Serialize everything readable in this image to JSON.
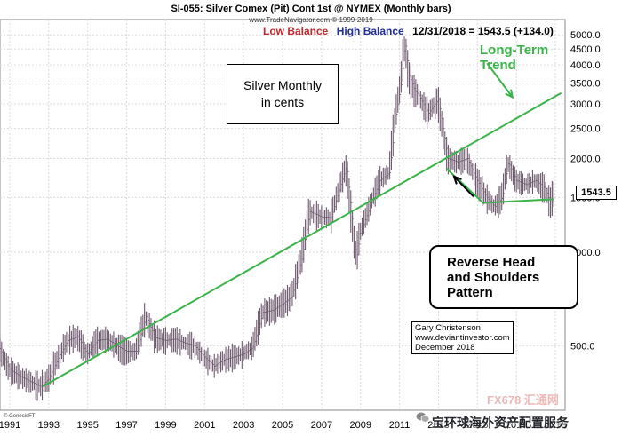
{
  "header": {
    "title": "SI-055:  Silver Comex (Pit) Cont 1st @ NYMEX  (Monthly bars)",
    "subtitle": "www.TradeNavigator.com © 1999-2019",
    "low_label": "Low Balance",
    "high_label": "High Balance",
    "last_quote": "12/31/2018 = 1543.5 (+134.0)"
  },
  "colors": {
    "low": "#c0282d",
    "high": "#1f2d99",
    "bar": "#6e5a6e",
    "trend": "#3bb34a",
    "grid": "#d9d9d9"
  },
  "annotations": {
    "box_line1": "Silver Monthly",
    "box_line2": "in cents",
    "trend_line1": "Long-Term",
    "trend_line2": "Trend",
    "pattern_line1": "Reverse Head",
    "pattern_line2": "and Shoulders",
    "pattern_line3": "Pattern",
    "credit_line1": "Gary Christenson",
    "credit_line2": "www.deviantinvestor.com",
    "credit_line3": "December 2018",
    "source": "© GenesisFT",
    "current_price": "1543.5"
  },
  "watermark": {
    "text": "宝环球海外资产配置服务",
    "domain": "FX678 汇通网",
    "icon": "wechat-icon"
  },
  "chart_data": {
    "type": "line",
    "scale": "log",
    "title": "SI-055:  Silver Comex (Pit) Cont 1st @ NYMEX  (Monthly bars)",
    "xlabel": "",
    "ylabel": "",
    "x_ticks": [
      "1991",
      "1993",
      "1995",
      "1997",
      "1999",
      "2001",
      "2003",
      "2005",
      "2007",
      "2009",
      "2011",
      "2013",
      "2015",
      "2017",
      "2019"
    ],
    "y_ticks": [
      "500.0",
      "1000.0",
      "1500.0",
      "2000.0",
      "2500.0",
      "3000.0",
      "3500.0",
      "4000.0",
      "4500.0",
      "5000.0"
    ],
    "xlim": [
      1990.5,
      2019.5
    ],
    "ylim": [
      310,
      5600
    ],
    "grid": true,
    "price_points": [
      [
        1990.5,
        490
      ],
      [
        1991.0,
        420
      ],
      [
        1991.5,
        400
      ],
      [
        1992.0,
        385
      ],
      [
        1992.6,
        370
      ],
      [
        1993.0,
        390
      ],
      [
        1993.6,
        470
      ],
      [
        1994.0,
        520
      ],
      [
        1994.5,
        535
      ],
      [
        1995.0,
        470
      ],
      [
        1995.5,
        520
      ],
      [
        1996.0,
        525
      ],
      [
        1996.5,
        500
      ],
      [
        1997.0,
        480
      ],
      [
        1997.5,
        480
      ],
      [
        1998.0,
        620
      ],
      [
        1998.5,
        530
      ],
      [
        1999.0,
        520
      ],
      [
        1999.5,
        525
      ],
      [
        2000.0,
        510
      ],
      [
        2000.5,
        500
      ],
      [
        2001.0,
        460
      ],
      [
        2001.5,
        430
      ],
      [
        2002.0,
        450
      ],
      [
        2002.5,
        460
      ],
      [
        2003.0,
        470
      ],
      [
        2003.5,
        495
      ],
      [
        2004.0,
        640
      ],
      [
        2004.5,
        650
      ],
      [
        2005.0,
        680
      ],
      [
        2005.5,
        720
      ],
      [
        2006.0,
        950
      ],
      [
        2006.4,
        1350
      ],
      [
        2007.0,
        1300
      ],
      [
        2007.5,
        1290
      ],
      [
        2008.0,
        1650
      ],
      [
        2008.3,
        1900
      ],
      [
        2008.8,
        950
      ],
      [
        2009.0,
        1150
      ],
      [
        2009.5,
        1400
      ],
      [
        2010.0,
        1700
      ],
      [
        2010.5,
        1800
      ],
      [
        2010.8,
        2700
      ],
      [
        2011.1,
        3500
      ],
      [
        2011.3,
        4800
      ],
      [
        2011.5,
        3700
      ],
      [
        2011.8,
        3300
      ],
      [
        2012.0,
        3200
      ],
      [
        2012.5,
        2800
      ],
      [
        2013.0,
        3100
      ],
      [
        2013.3,
        2400
      ],
      [
        2013.5,
        2000
      ],
      [
        2014.0,
        1950
      ],
      [
        2014.5,
        2000
      ],
      [
        2015.0,
        1700
      ],
      [
        2015.5,
        1500
      ],
      [
        2015.9,
        1400
      ],
      [
        2016.3,
        1500
      ],
      [
        2016.6,
        1950
      ],
      [
        2017.0,
        1700
      ],
      [
        2017.5,
        1650
      ],
      [
        2018.0,
        1700
      ],
      [
        2018.5,
        1600
      ],
      [
        2018.8,
        1420
      ],
      [
        2018.92,
        1543.5
      ]
    ],
    "trend_line": [
      [
        1992.7,
        370
      ],
      [
        2019.3,
        3250
      ]
    ],
    "pattern_lines": [
      [
        2013.4,
        1860
      ],
      [
        2015.3,
        1440
      ],
      [
        2018.9,
        1480
      ]
    ],
    "pattern_arrow": [
      [
        2014.8,
        1510
      ],
      [
        2013.8,
        1750
      ]
    ],
    "trend_arrow": [
      [
        2015.5,
        4050
      ],
      [
        2016.8,
        3150
      ]
    ],
    "last_value": 1543.5
  }
}
